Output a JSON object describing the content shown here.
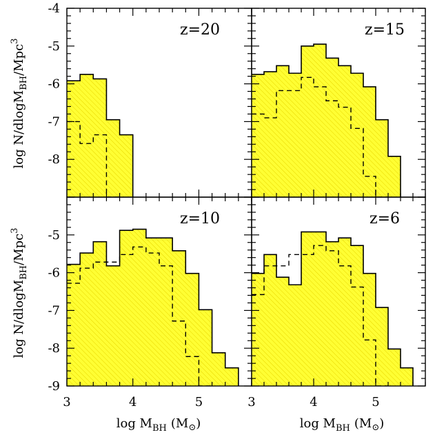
{
  "figure": {
    "ylabel_text": "log N/dlogM",
    "ylabel_sub": "BH",
    "ylabel_tail": "/Mpc",
    "ylabel_sup": "3",
    "xlabel_text": "log M",
    "xlabel_sub": "BH",
    "xlabel_unit_open": "(M",
    "xlabel_unit_sym": "⊙",
    "xlabel_unit_close": ")"
  },
  "colors": {
    "fill": "#ffff33",
    "hatch": "#e8d400",
    "line": "#000000"
  },
  "chart_data": [
    {
      "type": "bar",
      "label": "z=20",
      "xlim": [
        3,
        5.8
      ],
      "ylim": [
        -9,
        -4
      ],
      "bin_edges": [
        3.0,
        3.2,
        3.4,
        3.6,
        3.8,
        4.0
      ],
      "solid": [
        -5.92,
        -5.75,
        -5.87,
        -6.95,
        -7.35
      ],
      "dashed": [
        -7.0,
        -7.58,
        -7.35,
        -9.0
      ],
      "yticks": [
        "-4",
        "-5",
        "-6",
        "-7",
        "-8"
      ],
      "xticks": []
    },
    {
      "type": "bar",
      "label": "z=15",
      "xlim": [
        3,
        5.8
      ],
      "ylim": [
        -9,
        -4
      ],
      "bin_edges": [
        3.0,
        3.2,
        3.4,
        3.6,
        3.8,
        4.0,
        4.2,
        4.4,
        4.6,
        4.8,
        5.0,
        5.2,
        5.4
      ],
      "solid": [
        -5.75,
        -5.68,
        -5.52,
        -5.72,
        -5.0,
        -4.95,
        -5.32,
        -5.52,
        -5.72,
        -6.08,
        -6.95,
        -7.92
      ],
      "dashed": [
        -6.8,
        -6.9,
        -6.18,
        -6.18,
        -5.83,
        -6.08,
        -6.45,
        -6.62,
        -7.18,
        -8.45,
        -9.0
      ],
      "yticks": [],
      "xticks": []
    },
    {
      "type": "bar",
      "label": "z=10",
      "xlim": [
        3,
        5.8
      ],
      "ylim": [
        -9,
        -4
      ],
      "bin_edges": [
        3.0,
        3.2,
        3.4,
        3.6,
        3.8,
        4.0,
        4.2,
        4.4,
        4.6,
        4.8,
        5.0,
        5.2,
        5.4,
        5.6
      ],
      "solid": [
        -5.78,
        -5.48,
        -5.18,
        -5.82,
        -4.88,
        -4.85,
        -5.08,
        -5.08,
        -5.42,
        -6.02,
        -6.98,
        -8.12,
        -8.52
      ],
      "dashed": [
        -6.28,
        -5.88,
        -5.72,
        -5.72,
        -5.52,
        -5.32,
        -5.48,
        -5.82,
        -7.28,
        -8.22,
        -9.0
      ],
      "yticks": [
        "-5",
        "-6",
        "-7",
        "-8",
        "-9"
      ],
      "xticks": [
        "3",
        "4",
        "5"
      ]
    },
    {
      "type": "bar",
      "label": "z=6",
      "xlim": [
        3,
        5.8
      ],
      "ylim": [
        -9,
        -4
      ],
      "bin_edges": [
        3.0,
        3.2,
        3.4,
        3.6,
        3.8,
        4.0,
        4.2,
        4.4,
        4.6,
        4.8,
        5.0,
        5.2,
        5.4,
        5.6
      ],
      "solid": [
        -6.02,
        -5.52,
        -6.12,
        -6.32,
        -4.92,
        -4.92,
        -5.18,
        -5.08,
        -5.28,
        -6.02,
        -6.92,
        -8.02,
        -8.52
      ],
      "dashed": [
        -6.58,
        -5.82,
        -5.82,
        -5.52,
        -5.52,
        -5.28,
        -5.42,
        -5.82,
        -6.38,
        -7.78,
        -9.0
      ],
      "yticks": [],
      "xticks": [
        "3",
        "4",
        "5"
      ]
    }
  ]
}
